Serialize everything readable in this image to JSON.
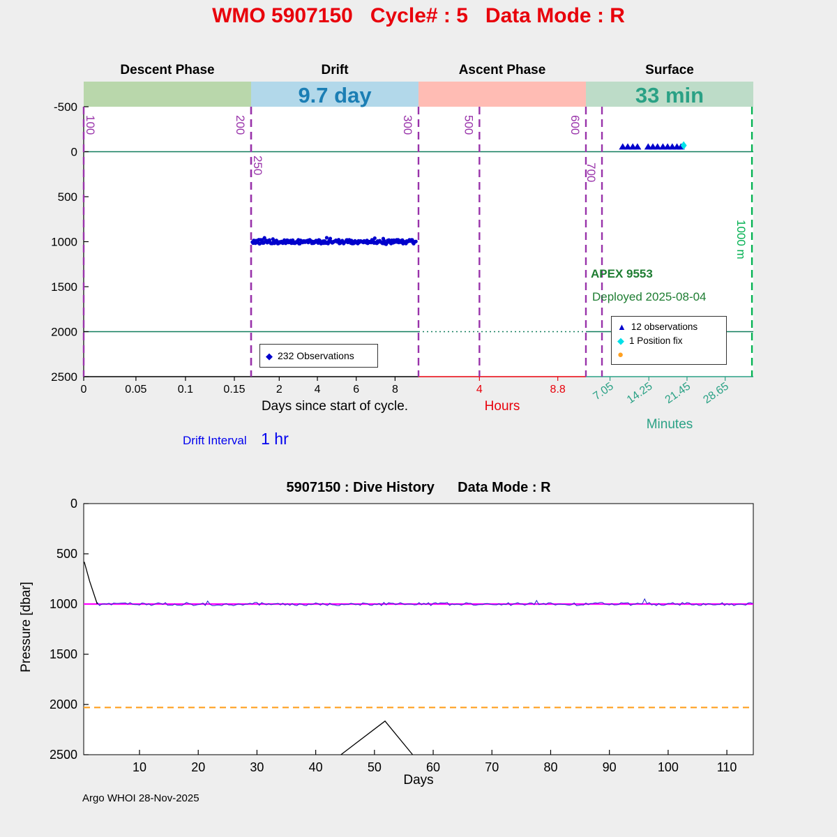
{
  "header": {
    "title": "WMO 5907150   Cycle# : 5   Data Mode : R"
  },
  "footer": {
    "credit": "Argo WHOI 28-Nov-2025"
  },
  "icons": {
    "diamond": "◆",
    "triangle": "▲",
    "dot": "●"
  },
  "colors": {
    "background": "#eeeeee",
    "title_red": "#e8000b",
    "axis_black": "#000000",
    "hours_red": "#e8000b",
    "minutes_teal": "#2aa185",
    "event_purple": "#9933aa",
    "park_green_line": "#107c5c",
    "right_edge_green": "#00b050",
    "annotation_green": "#1e7d32",
    "marker_blue": "#0000cc",
    "marker_cyan": "#00e0e8",
    "marker_orange": "#ffa020",
    "drift_value_blue": "#0000ee",
    "magenta_line": "#ff00ff",
    "orange_dashed": "#ffa020",
    "trace_black": "#000000"
  },
  "chart_data": [
    {
      "id": "cycle-phase-plot",
      "type": "scatter",
      "phases": [
        {
          "label": "Descent Phase",
          "band_text": "",
          "band_color": "#b9d7ab",
          "band_text_color": "#000000"
        },
        {
          "label": "Drift",
          "band_text": "9.7 day",
          "band_color": "#b2d8ea",
          "band_text_color": "#1b7eb4"
        },
        {
          "label": "Ascent Phase",
          "band_text": "",
          "band_color": "#ffbcb4",
          "band_text_color": "#000000"
        },
        {
          "label": "Surface",
          "band_text": "33 min",
          "band_color": "#bddcc8",
          "band_text_color": "#2aa185"
        }
      ],
      "ylim": [
        -500,
        2500
      ],
      "yticks": [
        -500,
        0,
        500,
        1000,
        1500,
        2000,
        2500
      ],
      "park_lines_dbar": [
        0,
        2000
      ],
      "x_axes": [
        {
          "label": "Days since start of cycle.",
          "color": "#000000",
          "span": [
            0,
            0.5
          ],
          "rot": 0,
          "ticks": [
            {
              "t": "0",
              "f": 0.0
            },
            {
              "t": "0.05",
              "f": 0.078
            },
            {
              "t": "0.1",
              "f": 0.152
            },
            {
              "t": "0.15",
              "f": 0.225
            },
            {
              "t": "2",
              "f": 0.292
            },
            {
              "t": "4",
              "f": 0.349
            },
            {
              "t": "6",
              "f": 0.407
            },
            {
              "t": "8",
              "f": 0.465
            }
          ]
        },
        {
          "label": "Hours",
          "color": "#e8000b",
          "span": [
            0.5,
            0.75
          ],
          "rot": 0,
          "ticks": [
            {
              "t": "4",
              "f": 0.591
            },
            {
              "t": "8.8",
              "f": 0.708
            }
          ]
        },
        {
          "label": "Minutes",
          "color": "#2aa185",
          "span": [
            0.75,
            1.0
          ],
          "rot": -35,
          "ticks": [
            {
              "t": "7.05",
              "f": 0.786
            },
            {
              "t": "14.25",
              "f": 0.844
            },
            {
              "t": "21.45",
              "f": 0.901
            },
            {
              "t": "28.65",
              "f": 0.958
            }
          ]
        }
      ],
      "event_lines": [
        {
          "label": "100",
          "f": 0.0,
          "color": "#9933aa",
          "side": "right",
          "dy": 12
        },
        {
          "label": "200",
          "f": 0.25,
          "color": "#9933aa",
          "side": "left",
          "dy": 12
        },
        {
          "label": "250",
          "f": 0.25,
          "color": "#9933aa",
          "side": "right",
          "dy": 70
        },
        {
          "label": "300",
          "f": 0.5,
          "color": "#9933aa",
          "side": "left",
          "dy": 12
        },
        {
          "label": "500",
          "f": 0.591,
          "color": "#9933aa",
          "side": "left",
          "dy": 12
        },
        {
          "label": "600",
          "f": 0.75,
          "color": "#9933aa",
          "side": "left",
          "dy": 12
        },
        {
          "label": "700",
          "f": 0.774,
          "color": "#9933aa",
          "side": "left",
          "dy": 80
        },
        {
          "label": "1000 m",
          "f": 0.998,
          "color": "#00b050",
          "side": "left",
          "dy": 162
        }
      ],
      "drift_observations": {
        "legend": "232 Observations",
        "count": 232,
        "pressure_dbar": 1000,
        "jitter_dbar": 22,
        "f_start": 0.252,
        "f_end": 0.496
      },
      "surface_observations": {
        "legend": "12 observations",
        "pressure_dbar": -55,
        "f_positions": [
          0.805,
          0.8125,
          0.82,
          0.827,
          0.843,
          0.85,
          0.857,
          0.865,
          0.872,
          0.879,
          0.886,
          0.892
        ]
      },
      "position_fix": {
        "legend": "1 Position fix",
        "f": 0.896,
        "pressure_dbar": -70
      },
      "annotations": {
        "float_model": "APEX 9553",
        "deployed": "Deployed 2025-08-04"
      },
      "drift_interval": {
        "label": "Drift Interval",
        "value": "1 hr"
      }
    },
    {
      "id": "dive-history",
      "type": "line",
      "title": "5907150 : Dive History      Data Mode : R",
      "xlabel": "Days",
      "ylabel": "Pressure [dbar]",
      "xlim": [
        0.5,
        114.5
      ],
      "ylim": [
        0,
        2500
      ],
      "xticks": [
        10,
        20,
        30,
        40,
        50,
        60,
        70,
        80,
        90,
        100,
        110
      ],
      "yticks": [
        0,
        500,
        1000,
        1500,
        2000,
        2500
      ],
      "series": [
        {
          "name": "park-pressure-line",
          "color": "#ff00ff",
          "style": "solid",
          "width": 2.2,
          "const_y": 1000
        },
        {
          "name": "profile-pressure-line",
          "color": "#ffa020",
          "style": "dashed",
          "width": 2.2,
          "const_y": 2030
        },
        {
          "name": "measured-pressure",
          "color": "#2222cc",
          "style": "noisy",
          "base_y": 1000,
          "jitter_dbar": 16,
          "x_start": 2.8,
          "x_end": 114.5
        },
        {
          "name": "descent-trace",
          "color": "#000000",
          "style": "poly",
          "points": [
            [
              0.6,
              580
            ],
            [
              1.5,
              770
            ],
            [
              2.8,
              1000
            ]
          ]
        },
        {
          "name": "deep-excursion",
          "color": "#000000",
          "style": "poly",
          "points": [
            [
              44.3,
              2500
            ],
            [
              51.8,
              2165
            ],
            [
              56.5,
              2500
            ]
          ]
        }
      ]
    }
  ]
}
